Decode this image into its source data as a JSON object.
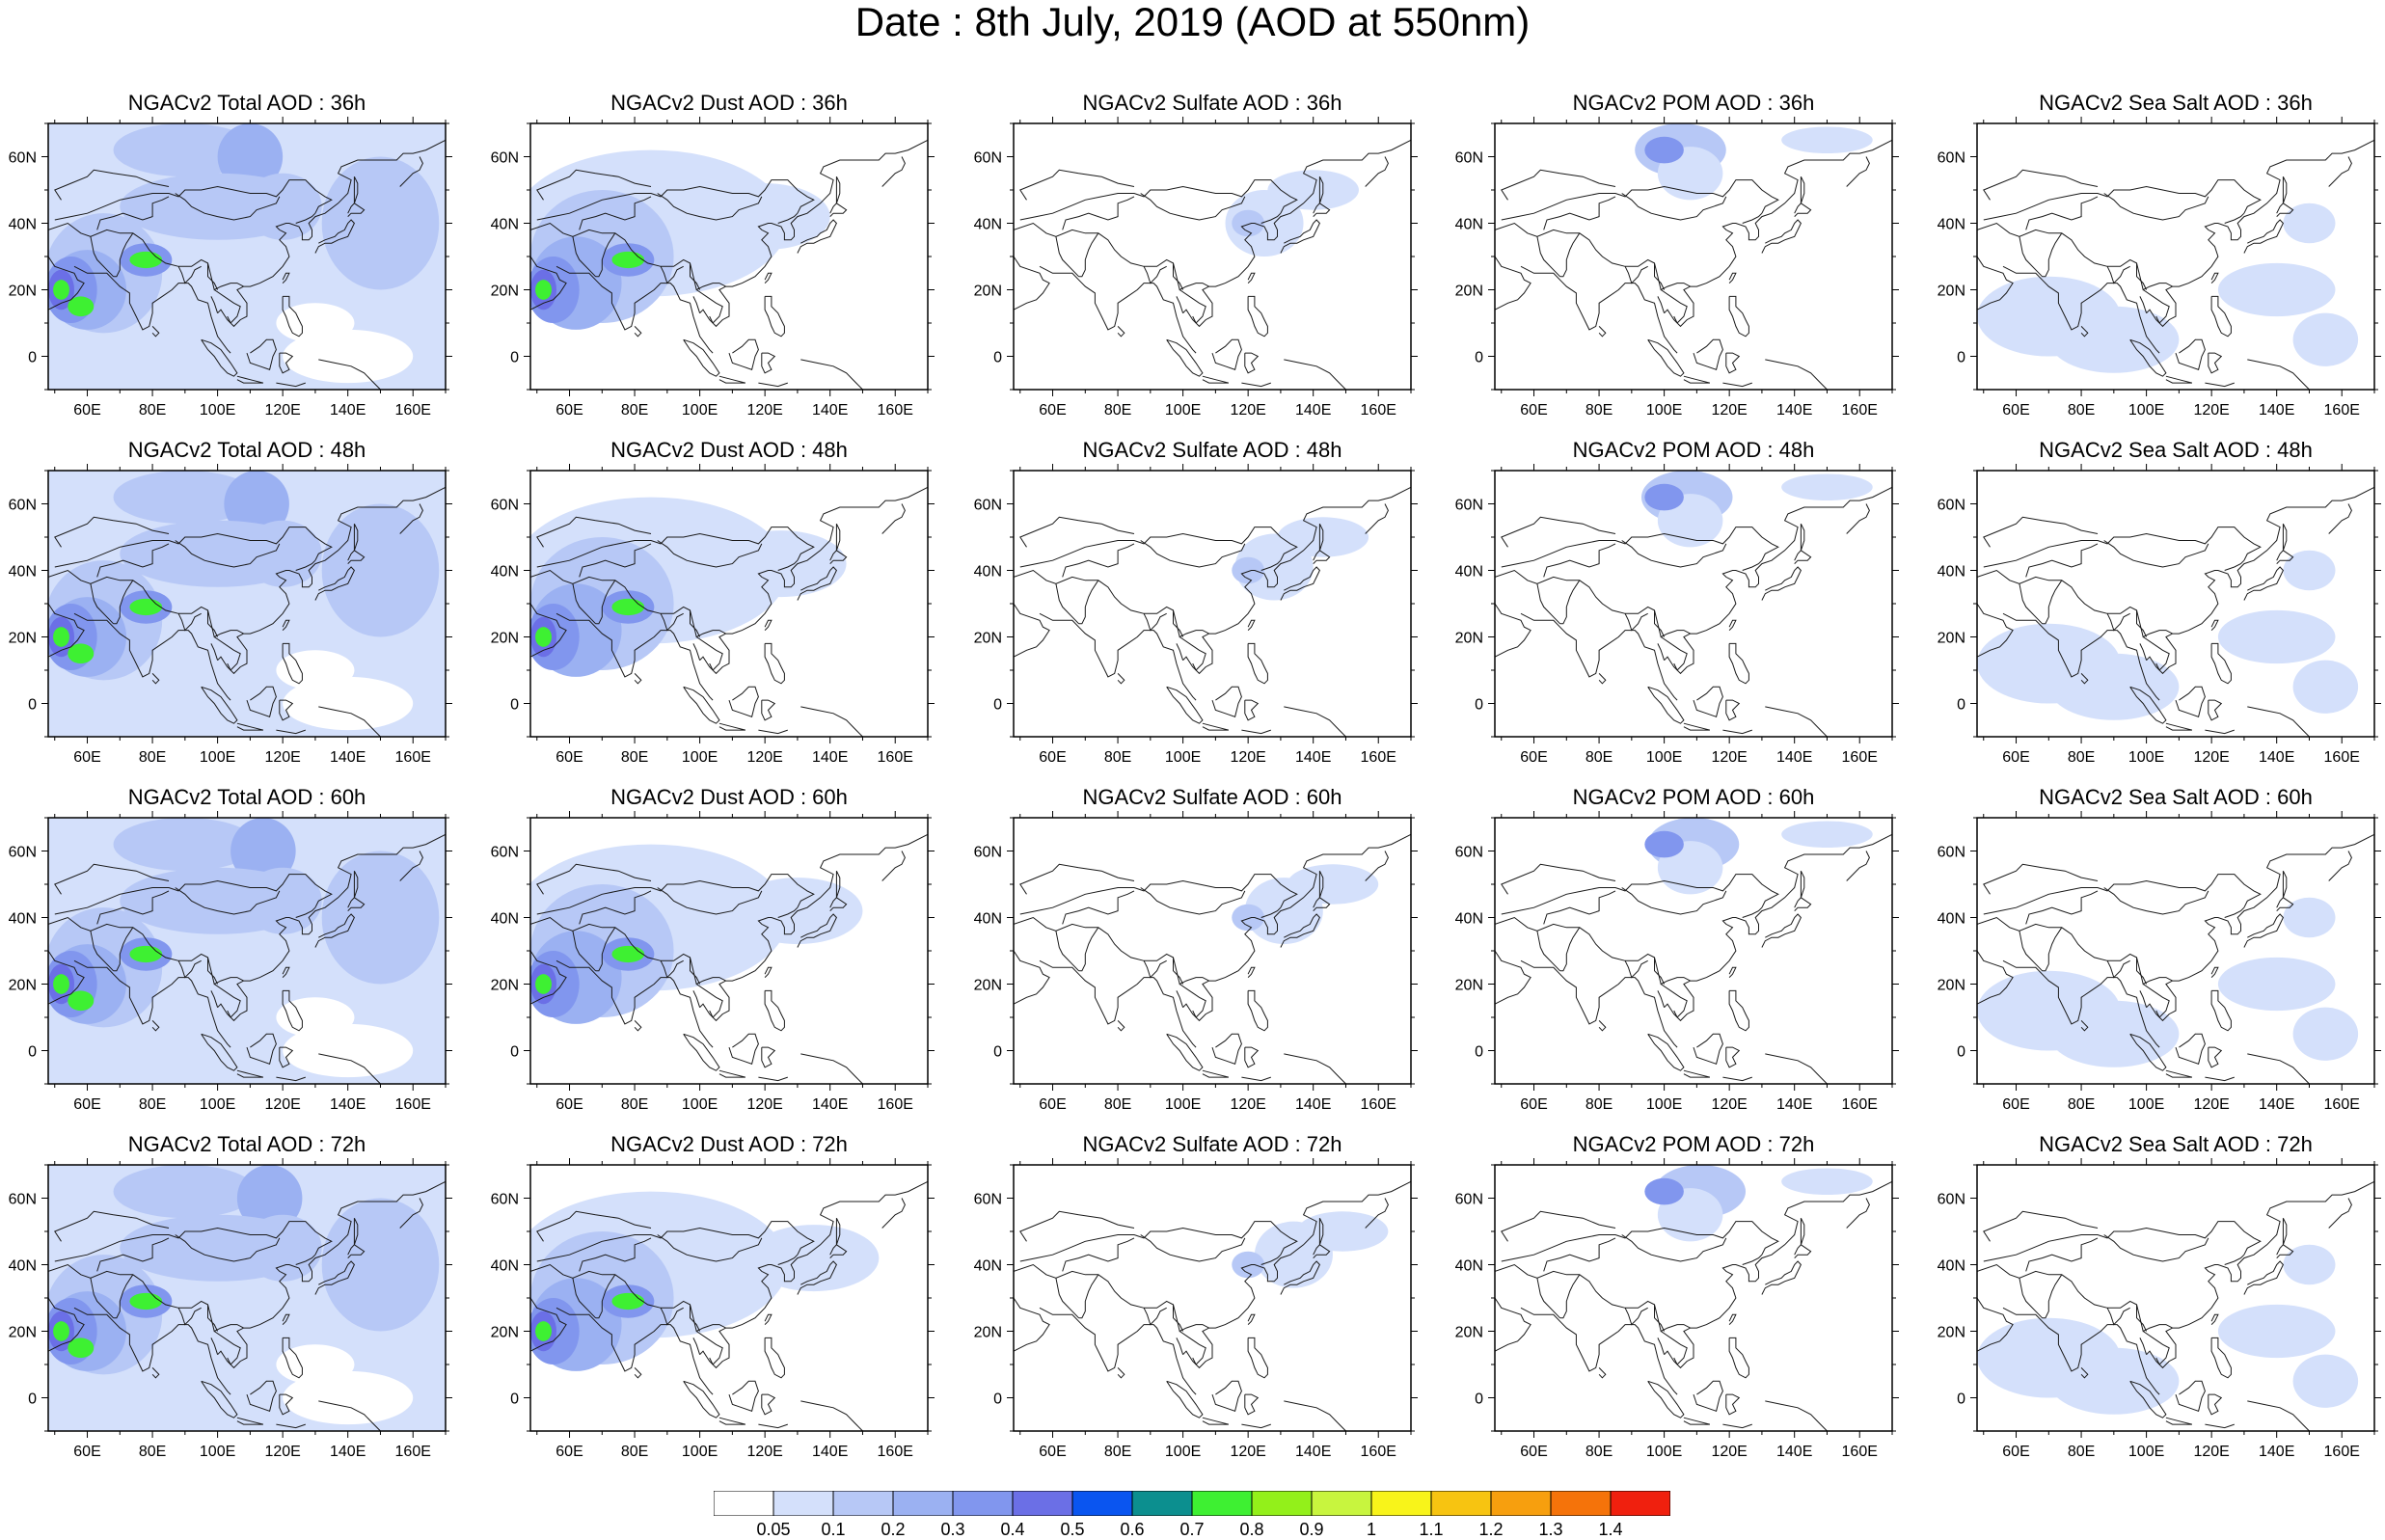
{
  "figure": {
    "title": "Date : 8th July, 2019 (AOD at 550nm)",
    "lon_ticks": [
      "60E",
      "80E",
      "100E",
      "120E",
      "140E",
      "160E"
    ],
    "lat_ticks": [
      "60N",
      "40N",
      "20N",
      "0"
    ],
    "panels": [
      {
        "title": "NGACv2 Total AOD : 36h",
        "species": "total",
        "hour": 36
      },
      {
        "title": "NGACv2 Dust AOD : 36h",
        "species": "dust",
        "hour": 36
      },
      {
        "title": "NGACv2 Sulfate AOD : 36h",
        "species": "sulfate",
        "hour": 36
      },
      {
        "title": "NGACv2 POM AOD : 36h",
        "species": "pom",
        "hour": 36
      },
      {
        "title": "NGACv2 Sea Salt AOD : 36h",
        "species": "seasalt",
        "hour": 36
      },
      {
        "title": "NGACv2 Total AOD : 48h",
        "species": "total",
        "hour": 48
      },
      {
        "title": "NGACv2 Dust AOD : 48h",
        "species": "dust",
        "hour": 48
      },
      {
        "title": "NGACv2 Sulfate AOD : 48h",
        "species": "sulfate",
        "hour": 48
      },
      {
        "title": "NGACv2 POM AOD : 48h",
        "species": "pom",
        "hour": 48
      },
      {
        "title": "NGACv2 Sea Salt AOD : 48h",
        "species": "seasalt",
        "hour": 48
      },
      {
        "title": "NGACv2 Total AOD : 60h",
        "species": "total",
        "hour": 60
      },
      {
        "title": "NGACv2 Dust AOD : 60h",
        "species": "dust",
        "hour": 60
      },
      {
        "title": "NGACv2 Sulfate AOD : 60h",
        "species": "sulfate",
        "hour": 60
      },
      {
        "title": "NGACv2 POM AOD : 60h",
        "species": "pom",
        "hour": 60
      },
      {
        "title": "NGACv2 Sea Salt AOD : 60h",
        "species": "seasalt",
        "hour": 60
      },
      {
        "title": "NGACv2 Total AOD : 72h",
        "species": "total",
        "hour": 72
      },
      {
        "title": "NGACv2 Dust AOD : 72h",
        "species": "dust",
        "hour": 72
      },
      {
        "title": "NGACv2 Sulfate AOD : 72h",
        "species": "sulfate",
        "hour": 72
      },
      {
        "title": "NGACv2 POM AOD : 72h",
        "species": "pom",
        "hour": 72
      },
      {
        "title": "NGACv2 Sea Salt  AOD : 72h",
        "species": "seasalt",
        "hour": 72
      }
    ]
  },
  "colorbar": {
    "labels": [
      "0.05",
      "0.1",
      "0.2",
      "0.3",
      "0.4",
      "0.5",
      "0.6",
      "0.7",
      "0.8",
      "0.9",
      "1",
      "1.1",
      "1.2",
      "1.3",
      "1.4"
    ],
    "colors": [
      "#ffffff",
      "#d4e0fb",
      "#b7c8f6",
      "#9bb1f2",
      "#8196ee",
      "#6b6fe6",
      "#0a55f0",
      "#0c8f8f",
      "#3ef032",
      "#93f01a",
      "#c8f53e",
      "#f8f41a",
      "#f7c411",
      "#f79f0e",
      "#f5730a",
      "#f0200e"
    ]
  }
}
